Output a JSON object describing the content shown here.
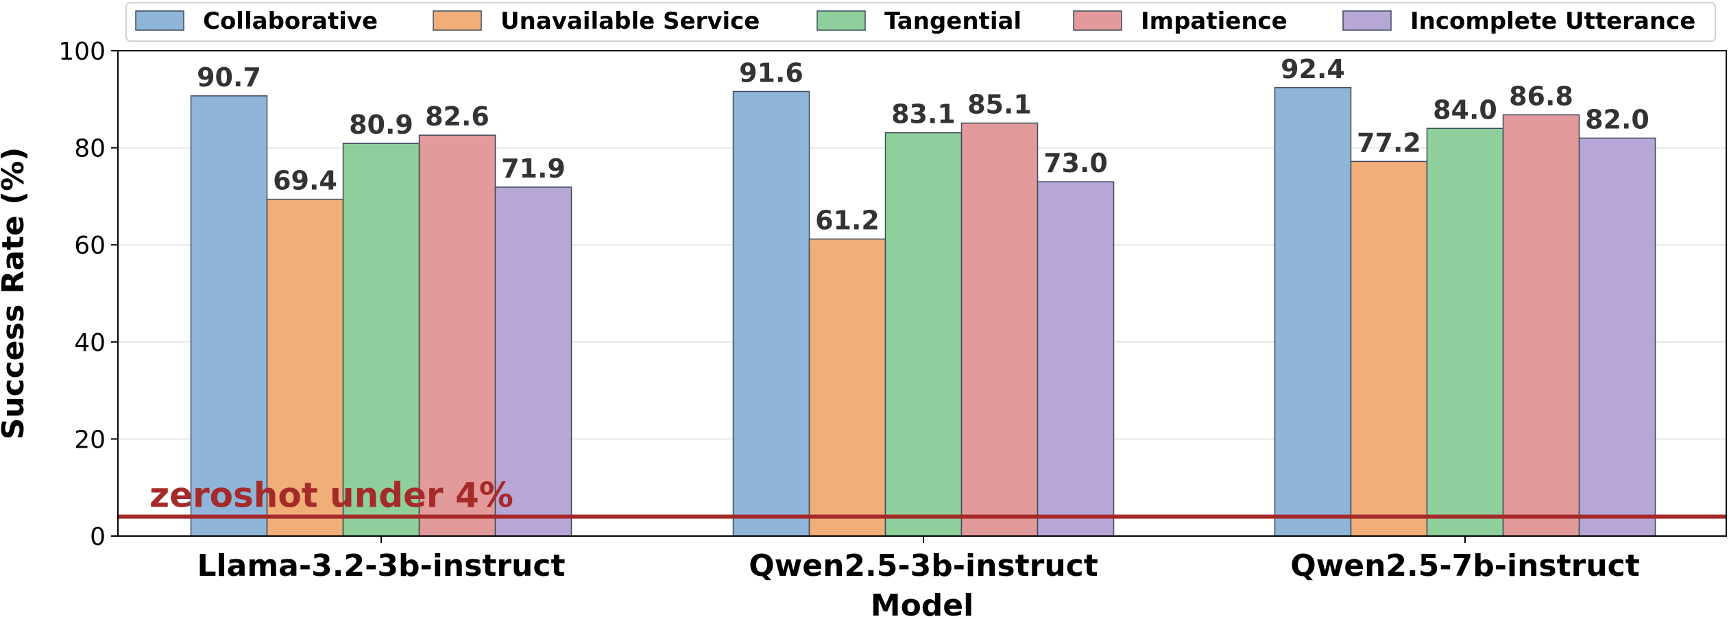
{
  "chart_data": {
    "type": "bar",
    "xlabel": "Model",
    "ylabel": "Success Rate (%)",
    "ylim": [
      0,
      100
    ],
    "yticks": [
      0,
      20,
      40,
      60,
      80,
      100
    ],
    "grid": "horizontal",
    "legend_position": "top",
    "categories": [
      "Llama-3.2-3b-instruct",
      "Qwen2.5-3b-instruct",
      "Qwen2.5-7b-instruct"
    ],
    "series": [
      {
        "name": "Collaborative",
        "color": "#8fb6d9",
        "values": [
          90.7,
          91.6,
          92.4
        ]
      },
      {
        "name": "Unavailable Service",
        "color": "#f1ae78",
        "values": [
          69.4,
          61.2,
          77.2
        ]
      },
      {
        "name": "Tangential",
        "color": "#8ecf9b",
        "values": [
          80.9,
          83.1,
          84.0
        ]
      },
      {
        "name": "Impatience",
        "color": "#e29a9a",
        "values": [
          82.6,
          85.1,
          86.8
        ]
      },
      {
        "name": "Incomplete Utterance",
        "color": "#b7a7d6",
        "values": [
          71.9,
          73.0,
          82.0
        ]
      }
    ],
    "reference_line": {
      "value": 4,
      "label": "zeroshot under 4%",
      "color": "#a52a2a"
    }
  }
}
